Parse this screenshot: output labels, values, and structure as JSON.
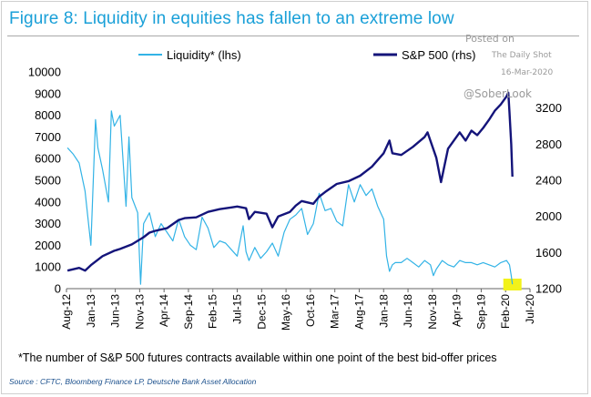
{
  "figure": {
    "title": "Figure 8: Liquidity in equities has fallen to an extreme low",
    "footnote": "*The number of S&P 500 futures contracts available within one point of the best bid-offer prices",
    "source": "Source : CFTC, Bloomberg Finance LP, Deutsche Bank Asset Allocation"
  },
  "watermark": {
    "posted_on": "Posted on",
    "publisher": "The Daily Shot",
    "date": "16-Mar-2020",
    "handle": "@SoberLook"
  },
  "colors": {
    "title": "#1aa0d8",
    "liquidity": "#32b3e6",
    "sp500": "#14147a",
    "highlight": "#f2f21a",
    "source": "#1a4f8c"
  },
  "chart_data": {
    "type": "line",
    "title": "Figure 8: Liquidity in equities has fallen to an extreme low",
    "xlabel": "",
    "ylabel_left": "",
    "ylabel_right": "",
    "x_range": [
      "Aug-12",
      "Jul-20"
    ],
    "x_ticks": [
      "Aug-12",
      "Jan-13",
      "Jun-13",
      "Nov-13",
      "Apr-14",
      "Sep-14",
      "Feb-15",
      "Jul-15",
      "Dec-15",
      "May-16",
      "Oct-16",
      "Mar-17",
      "Aug-17",
      "Jan-18",
      "Jun-18",
      "Nov-18",
      "Apr-19",
      "Sep-19",
      "Feb-20",
      "Jul-20"
    ],
    "ylim_left": [
      0,
      10000
    ],
    "yticks_left": [
      0,
      1000,
      2000,
      3000,
      4000,
      5000,
      6000,
      7000,
      8000,
      9000,
      10000
    ],
    "ylim_right": [
      1200,
      3600
    ],
    "yticks_right": [
      1200,
      1600,
      2000,
      2400,
      2800,
      3200
    ],
    "legend": [
      "Liquidity* (lhs)",
      "S&P 500 (rhs)"
    ],
    "legend_position": "top",
    "annotation": "highlight box at latest liquidity reading (Mar-2020)",
    "series": [
      {
        "name": "Liquidity* (lhs)",
        "axis": "left",
        "x": [
          2012.6,
          2012.7,
          2012.8,
          2012.9,
          2013.0,
          2013.08,
          2013.12,
          2013.2,
          2013.3,
          2013.35,
          2013.4,
          2013.5,
          2013.6,
          2013.65,
          2013.7,
          2013.8,
          2013.85,
          2013.9,
          2014.0,
          2014.1,
          2014.2,
          2014.3,
          2014.4,
          2014.5,
          2014.6,
          2014.7,
          2014.8,
          2014.9,
          2015.0,
          2015.1,
          2015.2,
          2015.3,
          2015.4,
          2015.5,
          2015.6,
          2015.65,
          2015.7,
          2015.8,
          2015.9,
          2016.0,
          2016.1,
          2016.2,
          2016.3,
          2016.4,
          2016.5,
          2016.6,
          2016.7,
          2016.8,
          2016.9,
          2017.0,
          2017.1,
          2017.2,
          2017.3,
          2017.4,
          2017.5,
          2017.6,
          2017.7,
          2017.8,
          2017.9,
          2018.0,
          2018.05,
          2018.1,
          2018.15,
          2018.2,
          2018.3,
          2018.4,
          2018.5,
          2018.6,
          2018.7,
          2018.8,
          2018.85,
          2018.9,
          2019.0,
          2019.1,
          2019.2,
          2019.3,
          2019.4,
          2019.5,
          2019.6,
          2019.7,
          2019.8,
          2019.9,
          2020.0,
          2020.1,
          2020.15,
          2020.18,
          2020.2
        ],
        "values": [
          6500,
          6200,
          5800,
          4500,
          2000,
          7800,
          6500,
          5500,
          4000,
          8200,
          7500,
          8000,
          3800,
          7000,
          4200,
          3500,
          200,
          3000,
          3500,
          2400,
          3000,
          2600,
          2200,
          3200,
          2400,
          2000,
          1800,
          3300,
          2800,
          1900,
          2200,
          2100,
          1800,
          1500,
          2900,
          1700,
          1300,
          1900,
          1400,
          1700,
          2100,
          1500,
          2600,
          3200,
          3400,
          3700,
          2500,
          3000,
          4400,
          3600,
          3700,
          3100,
          2900,
          4800,
          4000,
          4800,
          4300,
          4600,
          3800,
          3200,
          1500,
          800,
          1100,
          1200,
          1200,
          1400,
          1200,
          1000,
          1300,
          1100,
          600,
          900,
          1300,
          1100,
          1000,
          1300,
          1200,
          1200,
          1100,
          1200,
          1100,
          1000,
          1200,
          1300,
          1100,
          600,
          200
        ]
      },
      {
        "name": "S&P 500 (rhs)",
        "axis": "right",
        "x": [
          2012.6,
          2012.8,
          2012.9,
          2013.0,
          2013.2,
          2013.4,
          2013.5,
          2013.7,
          2013.9,
          2014.0,
          2014.1,
          2014.3,
          2014.5,
          2014.6,
          2014.8,
          2015.0,
          2015.2,
          2015.4,
          2015.5,
          2015.65,
          2015.7,
          2015.8,
          2016.0,
          2016.1,
          2016.2,
          2016.4,
          2016.5,
          2016.6,
          2016.8,
          2016.9,
          2017.0,
          2017.2,
          2017.4,
          2017.6,
          2017.8,
          2018.0,
          2018.1,
          2018.15,
          2018.3,
          2018.5,
          2018.7,
          2018.75,
          2018.9,
          2018.98,
          2019.1,
          2019.3,
          2019.4,
          2019.5,
          2019.6,
          2019.7,
          2019.8,
          2019.9,
          2020.0,
          2020.1,
          2020.13,
          2020.15,
          2020.18,
          2020.2
        ],
        "values": [
          1400,
          1430,
          1400,
          1460,
          1560,
          1620,
          1640,
          1690,
          1770,
          1820,
          1840,
          1870,
          1960,
          1980,
          1990,
          2050,
          2080,
          2100,
          2110,
          2090,
          1970,
          2050,
          2030,
          1880,
          2000,
          2050,
          2120,
          2170,
          2140,
          2220,
          2270,
          2360,
          2390,
          2450,
          2550,
          2700,
          2840,
          2700,
          2680,
          2770,
          2880,
          2930,
          2650,
          2380,
          2750,
          2930,
          2840,
          2950,
          2900,
          2980,
          3070,
          3170,
          3240,
          3330,
          3370,
          3150,
          2800,
          2440
        ]
      }
    ]
  }
}
